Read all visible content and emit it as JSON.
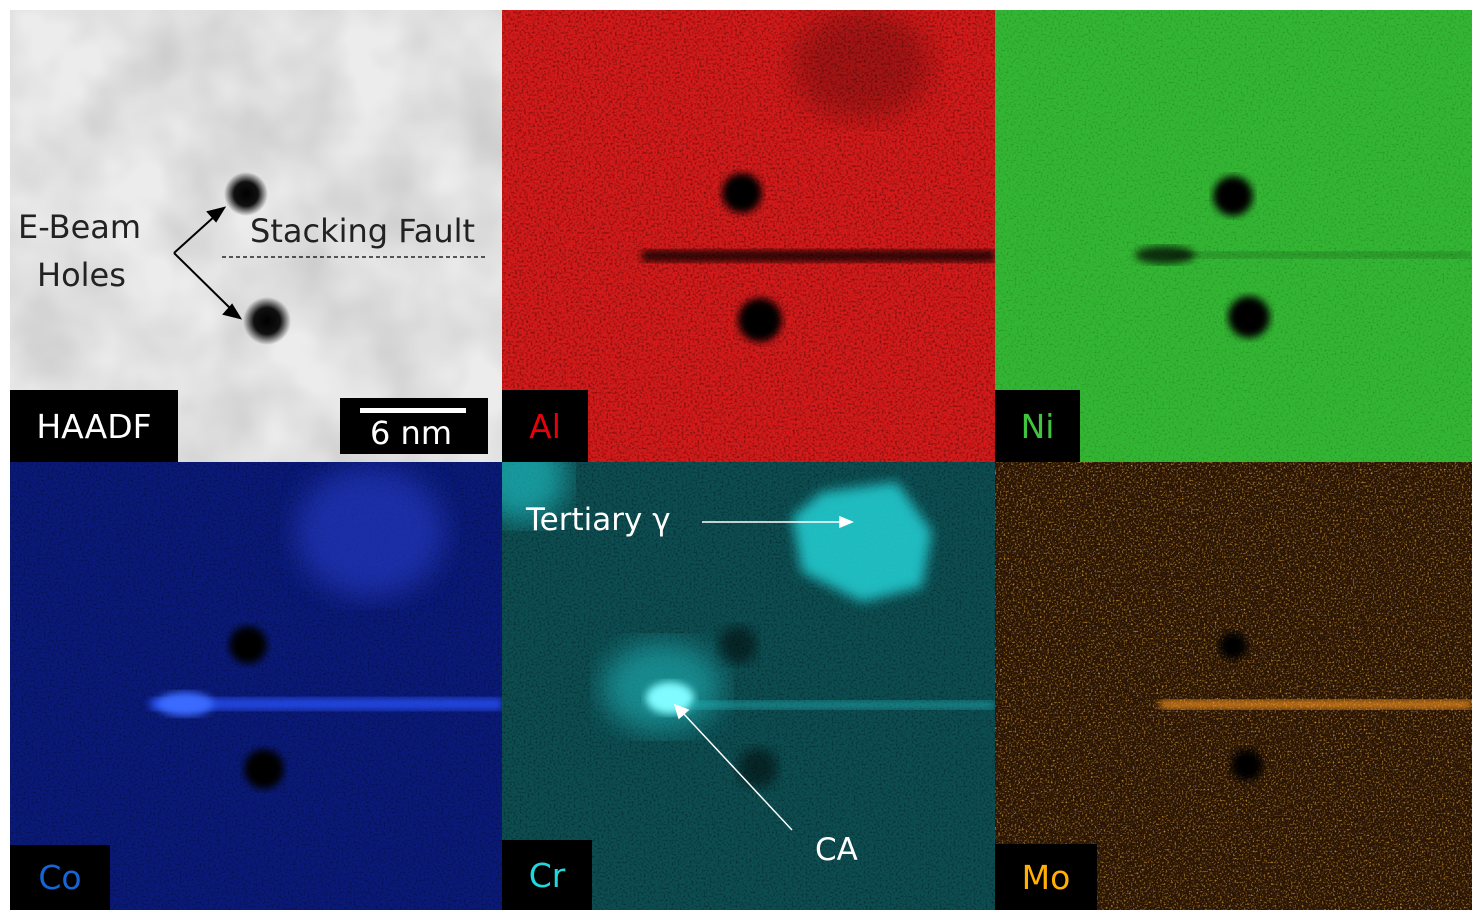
{
  "panels": {
    "haadf": {
      "label": "HAADF",
      "label_color": "#ffffff"
    },
    "al": {
      "label": "Al",
      "label_color": "#e8000b"
    },
    "ni": {
      "label": "Ni",
      "label_color": "#3ec43e"
    },
    "co": {
      "label": "Co",
      "label_color": "#1565d8"
    },
    "cr": {
      "label": "Cr",
      "label_color": "#20d8dc"
    },
    "mo": {
      "label": "Mo",
      "label_color": "#ffb000"
    }
  },
  "annotations": {
    "ebeam_line1": "E-Beam",
    "ebeam_line2": "Holes",
    "stacking_fault": "Stacking Fault",
    "scale_bar": "6 nm",
    "tertiary": "Tertiary γ",
    "ca": "CA"
  },
  "icons": [
    "arrow-icon"
  ]
}
